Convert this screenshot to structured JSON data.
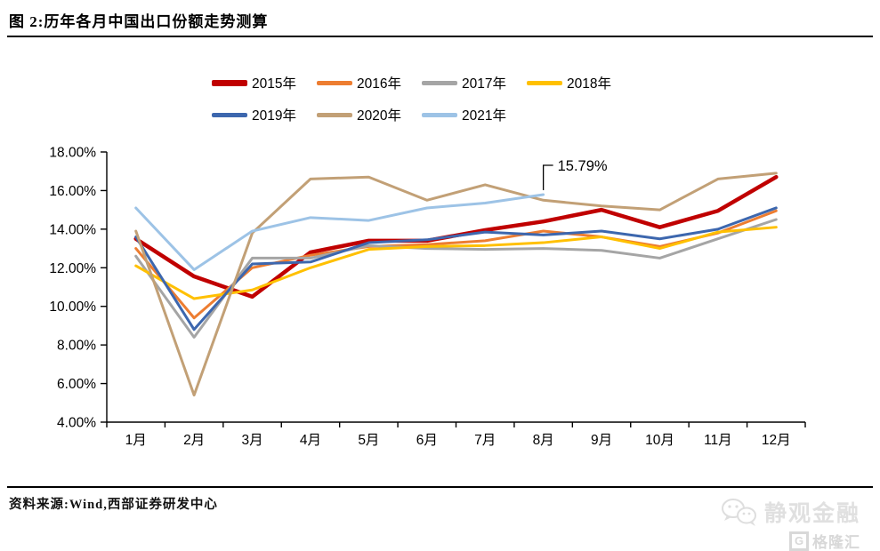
{
  "header": {
    "title": "图 2:历年各月中国出口份额走势测算"
  },
  "footer": {
    "source": "资料来源:Wind,西部证券研发中心"
  },
  "watermark": {
    "brand": "静观金融",
    "logo_g": "G",
    "logo_text": "格隆汇"
  },
  "chart_data": {
    "type": "line",
    "title": "图 2:历年各月中国出口份额走势测算",
    "categories": [
      "1月",
      "2月",
      "3月",
      "4月",
      "5月",
      "6月",
      "7月",
      "8月",
      "9月",
      "10月",
      "11月",
      "12月"
    ],
    "ylim": [
      4,
      18
    ],
    "ytick_step": 2,
    "ytick_labels": [
      "4.00%",
      "6.00%",
      "8.00%",
      "10.00%",
      "12.00%",
      "14.00%",
      "16.00%",
      "18.00%"
    ],
    "grid": false,
    "legend_position": "top",
    "axis_color": "#000000",
    "annotation": {
      "text": "15.79%",
      "series": "2021年",
      "category": "8月",
      "value": 15.79
    },
    "series": [
      {
        "name": "2015年",
        "color": "#C00000",
        "width": 4.5,
        "values": [
          13.5,
          11.55,
          10.5,
          12.8,
          13.4,
          13.4,
          13.95,
          14.4,
          15.0,
          14.1,
          14.95,
          16.7
        ]
      },
      {
        "name": "2016年",
        "color": "#ED7D31",
        "width": 3,
        "values": [
          13.0,
          9.4,
          12.0,
          12.65,
          13.1,
          13.2,
          13.4,
          13.9,
          13.6,
          13.1,
          13.8,
          14.95
        ]
      },
      {
        "name": "2017年",
        "color": "#A5A5A5",
        "width": 3,
        "values": [
          12.6,
          8.4,
          12.5,
          12.5,
          13.15,
          13.0,
          12.95,
          13.0,
          12.9,
          12.5,
          13.5,
          14.5
        ]
      },
      {
        "name": "2018年",
        "color": "#FFC000",
        "width": 3,
        "values": [
          12.1,
          10.4,
          10.85,
          12.0,
          12.95,
          13.1,
          13.15,
          13.3,
          13.6,
          13.0,
          13.85,
          14.1
        ]
      },
      {
        "name": "2019年",
        "color": "#3D67AE",
        "width": 3,
        "values": [
          13.6,
          8.8,
          12.2,
          12.3,
          13.3,
          13.45,
          13.85,
          13.7,
          13.9,
          13.5,
          14.0,
          15.1
        ]
      },
      {
        "name": "2020年",
        "color": "#C2A076",
        "width": 3,
        "values": [
          13.9,
          5.4,
          13.8,
          16.6,
          16.7,
          15.5,
          16.3,
          15.5,
          15.2,
          15.0,
          16.6,
          16.9
        ]
      },
      {
        "name": "2021年",
        "color": "#9DC3E6",
        "width": 3,
        "values": [
          15.1,
          11.9,
          13.9,
          14.6,
          14.45,
          15.1,
          15.35,
          15.79
        ]
      }
    ]
  }
}
